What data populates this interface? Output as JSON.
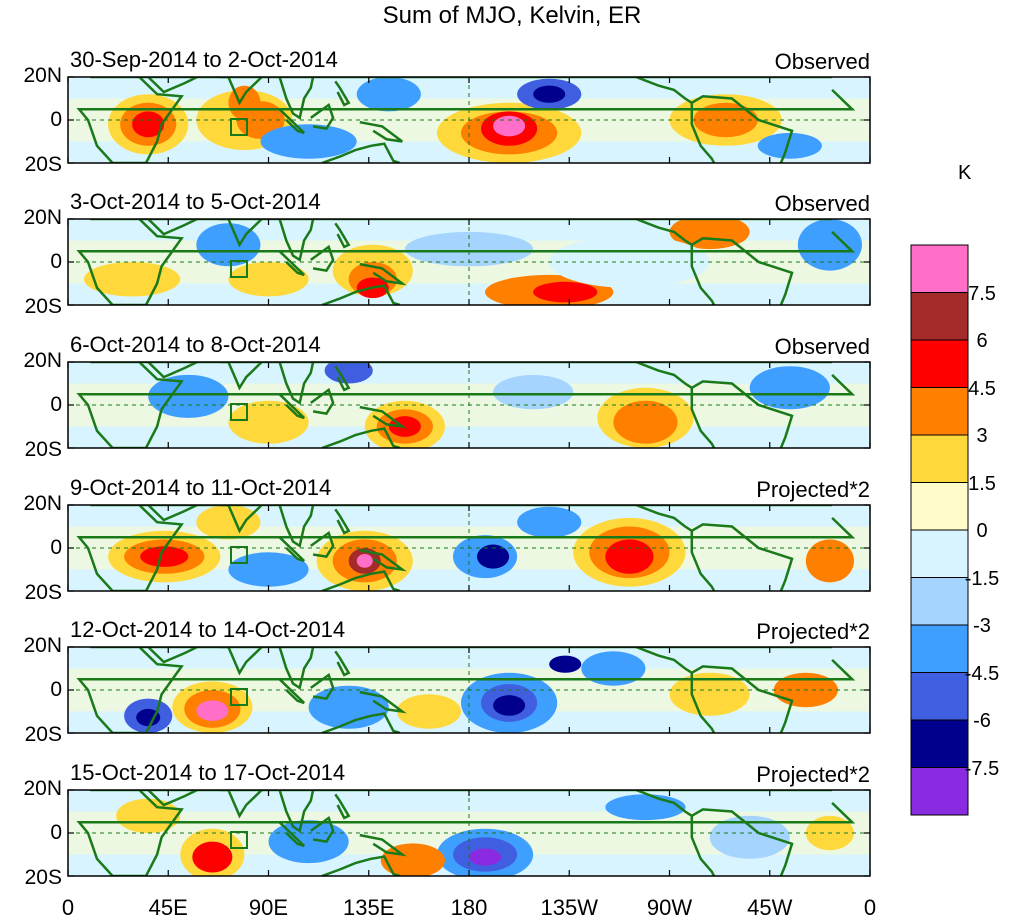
{
  "title": "Sum of MJO, Kelvin, ER",
  "panels": [
    {
      "dates": "30-Sep-2014 to 2-Oct-2014",
      "kind": "Observed"
    },
    {
      "dates": "3-Oct-2014 to 5-Oct-2014",
      "kind": "Observed"
    },
    {
      "dates": "6-Oct-2014 to 8-Oct-2014",
      "kind": "Observed"
    },
    {
      "dates": "9-Oct-2014 to 11-Oct-2014",
      "kind": "Projected*2"
    },
    {
      "dates": "12-Oct-2014 to 14-Oct-2014",
      "kind": "Projected*2"
    },
    {
      "dates": "15-Oct-2014 to 17-Oct-2014",
      "kind": "Projected*2"
    }
  ],
  "lat_labels": [
    "20N",
    "0",
    "20S"
  ],
  "lon_labels": [
    "0",
    "45E",
    "90E",
    "135E",
    "180",
    "135W",
    "90W",
    "45W",
    "0"
  ],
  "colorbar": {
    "units": "K",
    "labels": [
      "7.5",
      "6",
      "4.5",
      "3",
      "1.5",
      "0",
      "-1.5",
      "-3",
      "-4.5",
      "-6",
      "-7.5"
    ],
    "colors": [
      "#ff6ec7",
      "#a52a2a",
      "#ff0000",
      "#ff7f00",
      "#ffd83c",
      "#fffccc",
      "#d8f4ff",
      "#a5d4ff",
      "#3f9fff",
      "#3f5fe0",
      "#00008c",
      "#8a2be2"
    ]
  },
  "colors": {
    "coastline": "#1a7a1a",
    "box": "#1a7a1a",
    "reference_lines": "#1a7a1a"
  }
}
